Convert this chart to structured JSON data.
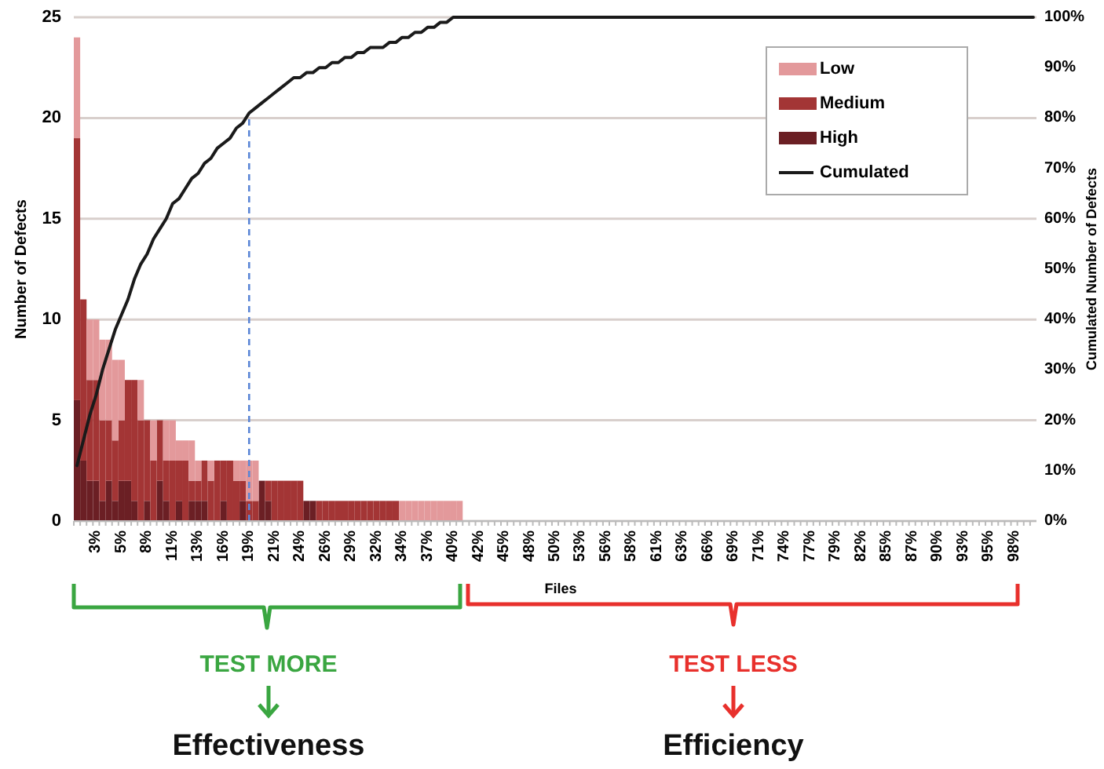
{
  "chart_data": {
    "type": "bar",
    "stacked": true,
    "xlabel": "Files",
    "ylabel": "Number of Defects",
    "y2label": "Cumulated Number of Defects",
    "categories": [
      null,
      null,
      null,
      "3%",
      null,
      null,
      null,
      "5%",
      null,
      null,
      null,
      "8%",
      null,
      null,
      null,
      "11%",
      null,
      null,
      null,
      "13%",
      null,
      null,
      null,
      "16%",
      null,
      null,
      null,
      "19%",
      null,
      null,
      null,
      "21%",
      null,
      null,
      null,
      "24%",
      null,
      null,
      null,
      "26%",
      null,
      null,
      null,
      "29%",
      null,
      null,
      null,
      "32%",
      null,
      null,
      null,
      "34%",
      null,
      null,
      null,
      "37%",
      null,
      null,
      null,
      "40%",
      null,
      null,
      null,
      "42%",
      null,
      null,
      null,
      "45%",
      null,
      null,
      null,
      "48%",
      null,
      null,
      null,
      "50%",
      null,
      null,
      null,
      "53%",
      null,
      null,
      null,
      "56%",
      null,
      null,
      null,
      "58%",
      null,
      null,
      null,
      "61%",
      null,
      null,
      null,
      "63%",
      null,
      null,
      null,
      "66%",
      null,
      null,
      null,
      "69%",
      null,
      null,
      null,
      "71%",
      null,
      null,
      null,
      "74%",
      null,
      null,
      null,
      "77%",
      null,
      null,
      null,
      "79%",
      null,
      null,
      null,
      "82%",
      null,
      null,
      null,
      "85%",
      null,
      null,
      null,
      "87%",
      null,
      null,
      null,
      "90%",
      null,
      null,
      null,
      "93%",
      null,
      null,
      null,
      "95%",
      null,
      null,
      null,
      "98%",
      null,
      null,
      null
    ],
    "series": [
      {
        "name": "High",
        "color": "#6b1f24",
        "values": [
          6,
          3,
          2,
          2,
          1,
          2,
          1,
          2,
          2,
          1,
          0,
          1,
          0,
          2,
          1,
          0,
          1,
          0,
          1,
          1,
          1,
          0,
          0,
          1,
          0,
          0,
          1,
          0,
          0,
          2,
          1,
          0,
          0,
          0,
          0,
          0,
          1,
          1,
          0,
          0,
          0,
          0,
          0,
          0,
          0,
          0,
          0,
          0,
          0,
          0,
          0,
          0,
          0,
          0,
          0,
          0,
          0,
          0,
          0,
          0,
          0,
          0,
          0,
          0,
          0,
          0,
          0,
          0,
          0,
          0,
          0,
          0,
          0,
          0,
          0,
          0,
          0,
          0,
          0,
          0,
          0,
          0,
          0,
          0,
          0,
          0,
          0,
          0,
          0,
          0,
          0,
          0,
          0,
          0,
          0,
          0,
          0,
          0,
          0,
          0,
          0,
          0,
          0,
          0,
          0,
          0,
          0,
          0,
          0,
          0,
          0,
          0,
          0,
          0,
          0,
          0,
          0,
          0,
          0,
          0,
          0,
          0,
          0,
          0,
          0,
          0,
          0,
          0,
          0,
          0,
          0,
          0,
          0,
          0,
          0,
          0,
          0,
          0,
          0,
          0,
          0,
          0,
          0,
          0,
          0,
          0,
          0,
          0,
          0,
          0,
          0
        ]
      },
      {
        "name": "Medium",
        "color": "#a33535",
        "values": [
          13,
          8,
          5,
          5,
          4,
          3,
          3,
          3,
          5,
          6,
          5,
          4,
          3,
          3,
          2,
          3,
          2,
          3,
          1,
          1,
          2,
          2,
          3,
          2,
          3,
          2,
          1,
          1,
          1,
          0,
          1,
          2,
          2,
          2,
          2,
          2,
          0,
          0,
          1,
          1,
          1,
          1,
          1,
          1,
          1,
          1,
          1,
          1,
          1,
          1,
          1,
          0,
          0,
          0,
          0,
          0,
          0,
          0,
          0,
          0,
          0,
          0,
          0,
          0,
          0,
          0,
          0,
          0,
          0,
          0,
          0,
          0,
          0,
          0,
          0,
          0,
          0,
          0,
          0,
          0,
          0,
          0,
          0,
          0,
          0,
          0,
          0,
          0,
          0,
          0,
          0,
          0,
          0,
          0,
          0,
          0,
          0,
          0,
          0,
          0,
          0,
          0,
          0,
          0,
          0,
          0,
          0,
          0,
          0,
          0,
          0,
          0,
          0,
          0,
          0,
          0,
          0,
          0,
          0,
          0,
          0,
          0,
          0,
          0,
          0,
          0,
          0,
          0,
          0,
          0,
          0,
          0,
          0,
          0,
          0,
          0,
          0,
          0,
          0,
          0,
          0,
          0,
          0,
          0,
          0,
          0,
          0,
          0,
          0,
          0,
          0
        ]
      },
      {
        "name": "Low",
        "color": "#e3999b",
        "values": [
          5,
          0,
          3,
          3,
          4,
          4,
          4,
          3,
          0,
          0,
          2,
          0,
          2,
          0,
          2,
          2,
          1,
          1,
          2,
          1,
          0,
          1,
          0,
          0,
          0,
          1,
          1,
          2,
          2,
          0,
          0,
          0,
          0,
          0,
          0,
          0,
          0,
          0,
          0,
          0,
          0,
          0,
          0,
          0,
          0,
          0,
          0,
          0,
          0,
          0,
          0,
          1,
          1,
          1,
          1,
          1,
          1,
          1,
          1,
          1,
          1,
          0,
          0,
          0,
          0,
          0,
          0,
          0,
          0,
          0,
          0,
          0,
          0,
          0,
          0,
          0,
          0,
          0,
          0,
          0,
          0,
          0,
          0,
          0,
          0,
          0,
          0,
          0,
          0,
          0,
          0,
          0,
          0,
          0,
          0,
          0,
          0,
          0,
          0,
          0,
          0,
          0,
          0,
          0,
          0,
          0,
          0,
          0,
          0,
          0,
          0,
          0,
          0,
          0,
          0,
          0,
          0,
          0,
          0,
          0,
          0,
          0,
          0,
          0,
          0,
          0,
          0,
          0,
          0,
          0,
          0,
          0,
          0,
          0,
          0,
          0,
          0,
          0,
          0,
          0,
          0,
          0,
          0,
          0,
          0,
          0,
          0,
          0,
          0,
          0,
          0
        ]
      },
      {
        "name": "Cumulated",
        "type": "line",
        "axis": "y2",
        "color": "#1a1a1a",
        "values": [
          11,
          16,
          21,
          25,
          30,
          34,
          38,
          41,
          44,
          48,
          51,
          53,
          56,
          58,
          60,
          63,
          64,
          66,
          68,
          69,
          71,
          72,
          74,
          75,
          76,
          78,
          79,
          81,
          82,
          83,
          84,
          85,
          86,
          87,
          88,
          88,
          89,
          89,
          90,
          90,
          91,
          91,
          92,
          92,
          93,
          93,
          94,
          94,
          94,
          95,
          95,
          96,
          96,
          97,
          97,
          98,
          98,
          99,
          99,
          100,
          100,
          100,
          100,
          100,
          100,
          100,
          100,
          100,
          100,
          100,
          100,
          100,
          100,
          100,
          100,
          100,
          100,
          100,
          100,
          100,
          100,
          100,
          100,
          100,
          100,
          100,
          100,
          100,
          100,
          100,
          100,
          100,
          100,
          100,
          100,
          100,
          100,
          100,
          100,
          100,
          100,
          100,
          100,
          100,
          100,
          100,
          100,
          100,
          100,
          100,
          100,
          100,
          100,
          100,
          100,
          100,
          100,
          100,
          100,
          100,
          100,
          100,
          100,
          100,
          100,
          100,
          100,
          100,
          100,
          100,
          100,
          100,
          100,
          100,
          100,
          100,
          100,
          100,
          100,
          100,
          100,
          100,
          100,
          100,
          100,
          100,
          100,
          100,
          100,
          100,
          100
        ]
      }
    ],
    "ylim": [
      0,
      25
    ],
    "yticks": [
      0,
      5,
      10,
      15,
      20,
      25
    ],
    "y2lim": [
      0,
      100
    ],
    "y2ticks": [
      {
        "value": 0,
        "label": "0%"
      },
      {
        "value": 10,
        "label": "10%"
      },
      {
        "value": 20,
        "label": "20%"
      },
      {
        "value": 30,
        "label": "30%"
      },
      {
        "value": 40,
        "label": "40%"
      },
      {
        "value": 50,
        "label": "50%"
      },
      {
        "value": 60,
        "label": "60%"
      },
      {
        "value": 70,
        "label": "70%"
      },
      {
        "value": 80,
        "label": "80%"
      },
      {
        "value": 90,
        "label": "90%"
      },
      {
        "value": 100,
        "label": "100%"
      }
    ],
    "grid": "y",
    "legend": "top right",
    "ref_lines": [
      {
        "axis": "x",
        "value": "19%",
        "color": "#5b86d6",
        "line_style": "dashed"
      }
    ],
    "annotations": [
      "TEST MORE",
      "Effectiveness",
      "TEST LESS",
      "Efficiency"
    ]
  }
}
